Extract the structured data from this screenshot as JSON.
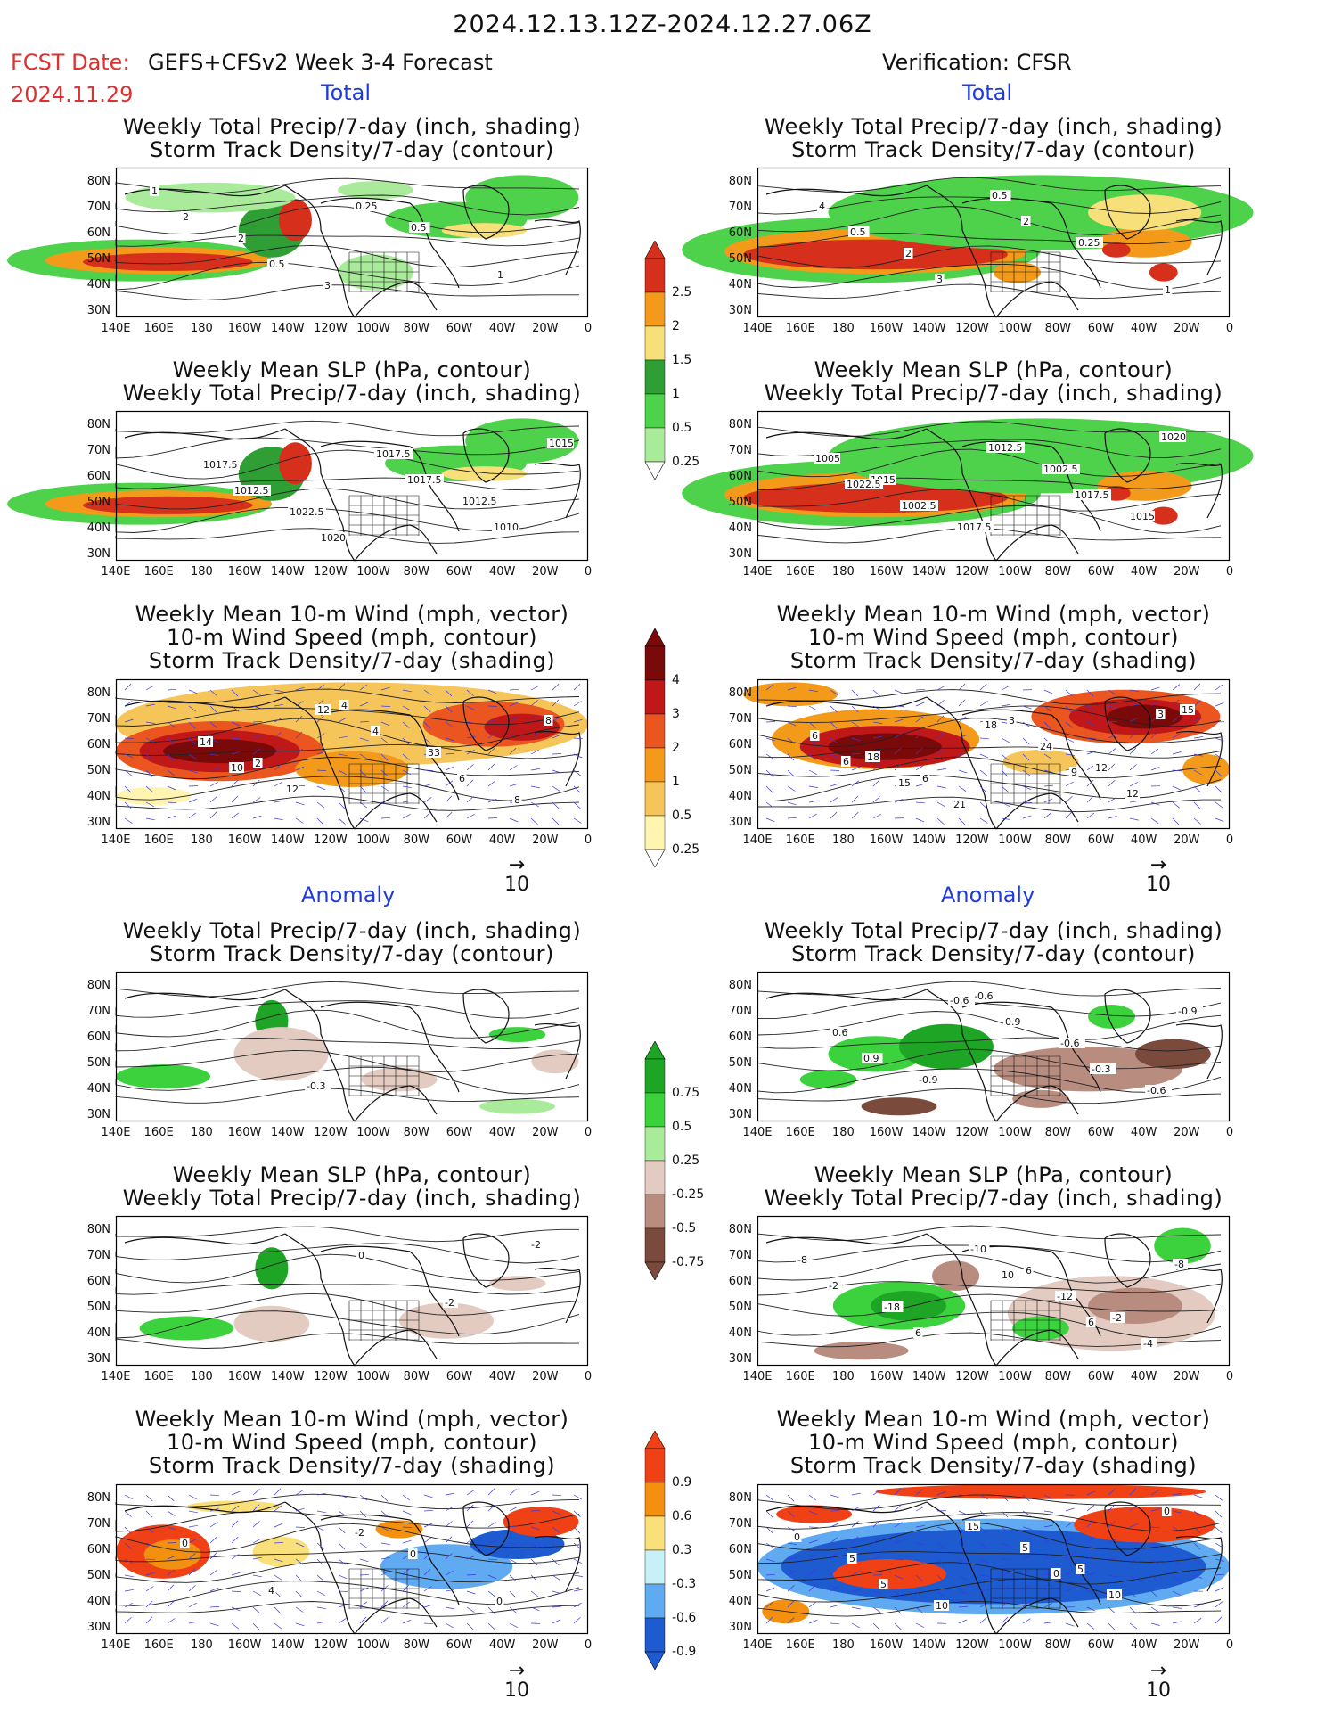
{
  "header": {
    "title": "2024.12.13.12Z-2024.12.27.06Z",
    "fcst_label": "FCST Date:",
    "fcst_model": "GEFS+CFSv2 Week 3-4 Forecast",
    "fcst_date": "2024.11.29",
    "verification": "Verification: CFSR"
  },
  "sections": {
    "total": "Total",
    "anomaly": "Anomaly"
  },
  "panel_titles": {
    "precip_storm": [
      "Weekly Total Precip/7-day (inch, shading)",
      "Storm Track Density/7-day (contour)"
    ],
    "slp_precip": [
      "Weekly Mean SLP (hPa, contour)",
      "Weekly Total Precip/7-day (inch, shading)"
    ],
    "wind_storm": [
      "Weekly Mean 10-m Wind (mph, vector)",
      "10-m Wind Speed (mph, contour)",
      "Storm Track Density/7-day (shading)"
    ]
  },
  "axes": {
    "lat_labels": [
      "80N",
      "70N",
      "60N",
      "50N",
      "40N",
      "30N"
    ],
    "lon_labels": [
      "140E",
      "160E",
      "180",
      "160W",
      "140W",
      "120W",
      "100W",
      "80W",
      "60W",
      "40W",
      "20W",
      "0"
    ]
  },
  "vector_ref": "10",
  "colorbars": {
    "precip_total": {
      "labels": [
        "2.5",
        "2",
        "1.5",
        "1",
        "0.5",
        "0.25"
      ],
      "colors": [
        "#d6301d",
        "#f39a1a",
        "#f7e07a",
        "#2f9e35",
        "#4fd24b",
        "#a9eb9a"
      ]
    },
    "storm_total": {
      "labels": [
        "4",
        "3",
        "2",
        "1",
        "0.5",
        "0.25"
      ],
      "colors": [
        "#7a0a0a",
        "#c01818",
        "#ea5520",
        "#f39a1a",
        "#f6c55a",
        "#fff4b0"
      ]
    },
    "precip_anom": {
      "labels": [
        "0.75",
        "0.5",
        "0.25",
        "-0.25",
        "-0.5",
        "-0.75"
      ],
      "colors": [
        "#1fa525",
        "#3bd23e",
        "#a9eb9a",
        "#e3cbc1",
        "#b88c7e",
        "#7a4a3c"
      ]
    },
    "storm_anom": {
      "labels": [
        "0.9",
        "0.6",
        "0.3",
        "-0.3",
        "-0.6",
        "-0.9"
      ],
      "colors": [
        "#f04016",
        "#f3900f",
        "#f9e07a",
        "#c8f0f8",
        "#5faaf0",
        "#1e5ad0"
      ]
    }
  },
  "contour_labels": {
    "p1": [
      "1",
      "2",
      "3",
      "0.5",
      "1",
      "2",
      "0.5",
      "0.25"
    ],
    "p2": [
      "4",
      "2",
      "0.5",
      "0.25",
      "1",
      "0.5",
      "3",
      "2"
    ],
    "p3": [
      "1017.5",
      "1022.5",
      "1017.5",
      "1012.5",
      "1015",
      "1012.5",
      "1020",
      "1017.5",
      "1010"
    ],
    "p4": [
      "1015",
      "1017.5",
      "1002.5",
      "1015",
      "1005",
      "1002.5",
      "1012.5",
      "1017.5",
      "1020",
      "1022.5"
    ],
    "p5": [
      "2",
      "4",
      "33",
      "8",
      "14",
      "12",
      "4",
      "6",
      "8",
      "10",
      "12"
    ],
    "p6": [
      "6",
      "3",
      "12",
      "15",
      "18",
      "21",
      "24",
      "12",
      "6",
      "15",
      "18",
      "9",
      "3",
      "6"
    ],
    "p7": [
      "-0.3"
    ],
    "p8": [
      "-0.6",
      "-0.6",
      "-0.6",
      "0.6",
      "-0.9",
      "0.9",
      "-0.3",
      "-0.9",
      "0.9",
      "-0.6"
    ],
    "p9": [
      "0",
      "-2",
      "-2"
    ],
    "p10": [
      "6",
      "-2",
      "-8",
      "-18",
      "-10",
      "-12",
      "-4",
      "-2",
      "6",
      "10",
      "6",
      "-8"
    ],
    "p11": [
      "0",
      "0",
      "0",
      "4",
      "-2"
    ],
    "p12": [
      "5",
      "0",
      "5",
      "10",
      "5",
      "10",
      "0",
      "5",
      "15",
      "0"
    ]
  },
  "panels": [
    {
      "id": "p1",
      "blobs": [
        [
          0.05,
          0.62,
          0.28,
          0.14,
          "#4fd24b"
        ],
        [
          0.09,
          0.62,
          0.24,
          0.09,
          "#f39a1a"
        ],
        [
          0.11,
          0.63,
          0.18,
          0.06,
          "#d6301d"
        ],
        [
          0.33,
          0.42,
          0.07,
          0.18,
          "#2f9e35"
        ],
        [
          0.38,
          0.35,
          0.035,
          0.14,
          "#d6301d"
        ],
        [
          0.72,
          0.35,
          0.15,
          0.12,
          "#4fd24b"
        ],
        [
          0.78,
          0.42,
          0.09,
          0.05,
          "#f7e07a"
        ],
        [
          0.55,
          0.15,
          0.08,
          0.06,
          "#a9eb9a"
        ],
        [
          0.86,
          0.2,
          0.12,
          0.15,
          "#4fd24b"
        ],
        [
          0.2,
          0.2,
          0.18,
          0.1,
          "#a9eb9a"
        ],
        [
          0.55,
          0.7,
          0.08,
          0.12,
          "#a9eb9a"
        ]
      ]
    },
    {
      "id": "p2",
      "blobs": [
        [
          0.22,
          0.55,
          0.38,
          0.22,
          "#4fd24b"
        ],
        [
          0.25,
          0.56,
          0.32,
          0.15,
          "#f39a1a"
        ],
        [
          0.25,
          0.58,
          0.28,
          0.1,
          "#d6301d"
        ],
        [
          0.6,
          0.3,
          0.45,
          0.25,
          "#4fd24b"
        ],
        [
          0.82,
          0.5,
          0.1,
          0.1,
          "#f39a1a"
        ],
        [
          0.86,
          0.7,
          0.03,
          0.06,
          "#d6301d"
        ],
        [
          0.76,
          0.55,
          0.03,
          0.05,
          "#d6301d"
        ],
        [
          0.55,
          0.7,
          0.05,
          0.07,
          "#f39a1a"
        ],
        [
          0.82,
          0.3,
          0.12,
          0.12,
          "#f7e07a"
        ]
      ]
    },
    {
      "id": "p3",
      "blobs": [
        [
          0.05,
          0.62,
          0.28,
          0.14,
          "#4fd24b"
        ],
        [
          0.09,
          0.62,
          0.24,
          0.09,
          "#f39a1a"
        ],
        [
          0.11,
          0.63,
          0.18,
          0.06,
          "#d6301d"
        ],
        [
          0.33,
          0.42,
          0.07,
          0.18,
          "#2f9e35"
        ],
        [
          0.38,
          0.35,
          0.035,
          0.14,
          "#d6301d"
        ],
        [
          0.72,
          0.35,
          0.15,
          0.12,
          "#4fd24b"
        ],
        [
          0.78,
          0.42,
          0.09,
          0.05,
          "#f7e07a"
        ],
        [
          0.86,
          0.2,
          0.12,
          0.15,
          "#4fd24b"
        ]
      ]
    },
    {
      "id": "p4",
      "blobs": [
        [
          0.22,
          0.55,
          0.38,
          0.22,
          "#4fd24b"
        ],
        [
          0.25,
          0.56,
          0.32,
          0.15,
          "#f39a1a"
        ],
        [
          0.25,
          0.58,
          0.28,
          0.1,
          "#d6301d"
        ],
        [
          0.6,
          0.3,
          0.45,
          0.25,
          "#4fd24b"
        ],
        [
          0.82,
          0.5,
          0.1,
          0.1,
          "#f39a1a"
        ],
        [
          0.86,
          0.7,
          0.03,
          0.06,
          "#d6301d"
        ],
        [
          0.76,
          0.55,
          0.03,
          0.05,
          "#d6301d"
        ]
      ]
    },
    {
      "id": "p5",
      "blobs": [
        [
          0.5,
          0.3,
          0.5,
          0.28,
          "#f6c55a"
        ],
        [
          0.22,
          0.48,
          0.22,
          0.2,
          "#ea5520"
        ],
        [
          0.22,
          0.48,
          0.17,
          0.14,
          "#c01818"
        ],
        [
          0.22,
          0.48,
          0.12,
          0.08,
          "#7a0a0a"
        ],
        [
          0.8,
          0.3,
          0.15,
          0.15,
          "#ea5520"
        ],
        [
          0.86,
          0.32,
          0.08,
          0.09,
          "#c01818"
        ],
        [
          0.5,
          0.6,
          0.12,
          0.12,
          "#f39a1a"
        ],
        [
          0.08,
          0.78,
          0.08,
          0.06,
          "#fff4b0"
        ]
      ]
    },
    {
      "id": "p6",
      "blobs": [
        [
          0.25,
          0.4,
          0.22,
          0.2,
          "#f39a1a"
        ],
        [
          0.27,
          0.45,
          0.18,
          0.14,
          "#c01818"
        ],
        [
          0.27,
          0.45,
          0.12,
          0.09,
          "#7a0a0a"
        ],
        [
          0.78,
          0.25,
          0.2,
          0.18,
          "#ea5520"
        ],
        [
          0.8,
          0.25,
          0.14,
          0.12,
          "#c01818"
        ],
        [
          0.82,
          0.25,
          0.08,
          0.08,
          "#7a0a0a"
        ],
        [
          0.07,
          0.1,
          0.1,
          0.08,
          "#f39a1a"
        ],
        [
          0.6,
          0.55,
          0.08,
          0.08,
          "#f6c55a"
        ],
        [
          0.95,
          0.6,
          0.05,
          0.1,
          "#f39a1a"
        ]
      ]
    },
    {
      "id": "p7",
      "blobs": [
        [
          0.1,
          0.7,
          0.1,
          0.08,
          "#3bd23e"
        ],
        [
          0.33,
          0.33,
          0.035,
          0.14,
          "#1fa525"
        ],
        [
          0.35,
          0.55,
          0.1,
          0.18,
          "#e3cbc1"
        ],
        [
          0.6,
          0.72,
          0.08,
          0.08,
          "#e3cbc1"
        ],
        [
          0.85,
          0.42,
          0.06,
          0.05,
          "#3bd23e"
        ],
        [
          0.93,
          0.6,
          0.05,
          0.08,
          "#e3cbc1"
        ],
        [
          0.85,
          0.9,
          0.08,
          0.05,
          "#a9eb9a"
        ]
      ]
    },
    {
      "id": "p8",
      "blobs": [
        [
          0.25,
          0.55,
          0.1,
          0.12,
          "#3bd23e"
        ],
        [
          0.4,
          0.5,
          0.1,
          0.15,
          "#1fa525"
        ],
        [
          0.15,
          0.72,
          0.06,
          0.06,
          "#3bd23e"
        ],
        [
          0.7,
          0.65,
          0.2,
          0.15,
          "#b88c7e"
        ],
        [
          0.88,
          0.55,
          0.08,
          0.1,
          "#7a4a3c"
        ],
        [
          0.3,
          0.9,
          0.08,
          0.06,
          "#7a4a3c"
        ],
        [
          0.75,
          0.3,
          0.05,
          0.08,
          "#3bd23e"
        ],
        [
          0.6,
          0.85,
          0.06,
          0.06,
          "#b88c7e"
        ]
      ]
    },
    {
      "id": "p9",
      "blobs": [
        [
          0.15,
          0.75,
          0.1,
          0.08,
          "#3bd23e"
        ],
        [
          0.33,
          0.35,
          0.035,
          0.14,
          "#1fa525"
        ],
        [
          0.33,
          0.72,
          0.08,
          0.12,
          "#e3cbc1"
        ],
        [
          0.85,
          0.45,
          0.06,
          0.05,
          "#e3cbc1"
        ],
        [
          0.7,
          0.7,
          0.1,
          0.12,
          "#e3cbc1"
        ]
      ]
    },
    {
      "id": "p10",
      "blobs": [
        [
          0.3,
          0.6,
          0.14,
          0.16,
          "#3bd23e"
        ],
        [
          0.32,
          0.6,
          0.08,
          0.1,
          "#1fa525"
        ],
        [
          0.42,
          0.4,
          0.05,
          0.1,
          "#b88c7e"
        ],
        [
          0.75,
          0.65,
          0.22,
          0.25,
          "#e3cbc1"
        ],
        [
          0.8,
          0.6,
          0.1,
          0.12,
          "#b88c7e"
        ],
        [
          0.6,
          0.75,
          0.06,
          0.08,
          "#3bd23e"
        ],
        [
          0.9,
          0.2,
          0.06,
          0.12,
          "#3bd23e"
        ],
        [
          0.22,
          0.9,
          0.1,
          0.06,
          "#b88c7e"
        ]
      ]
    },
    {
      "id": "p11",
      "blobs": [
        [
          0.1,
          0.45,
          0.1,
          0.18,
          "#f04016"
        ],
        [
          0.12,
          0.47,
          0.06,
          0.1,
          "#f3900f"
        ],
        [
          0.7,
          0.55,
          0.14,
          0.15,
          "#5faaf0"
        ],
        [
          0.85,
          0.4,
          0.1,
          0.1,
          "#1e5ad0"
        ],
        [
          0.9,
          0.25,
          0.08,
          0.1,
          "#f04016"
        ],
        [
          0.6,
          0.3,
          0.05,
          0.06,
          "#f3900f"
        ],
        [
          0.35,
          0.45,
          0.06,
          0.1,
          "#f9e07a"
        ],
        [
          0.25,
          0.15,
          0.1,
          0.04,
          "#f9e07a"
        ]
      ]
    },
    {
      "id": "p12",
      "blobs": [
        [
          0.5,
          0.55,
          0.5,
          0.32,
          "#5faaf0"
        ],
        [
          0.5,
          0.55,
          0.45,
          0.25,
          "#1e5ad0"
        ],
        [
          0.28,
          0.6,
          0.12,
          0.1,
          "#f04016"
        ],
        [
          0.82,
          0.27,
          0.15,
          0.12,
          "#f04016"
        ],
        [
          0.6,
          0.05,
          0.35,
          0.05,
          "#f04016"
        ],
        [
          0.06,
          0.85,
          0.05,
          0.08,
          "#f3900f"
        ],
        [
          0.12,
          0.2,
          0.08,
          0.06,
          "#f04016"
        ]
      ]
    }
  ]
}
